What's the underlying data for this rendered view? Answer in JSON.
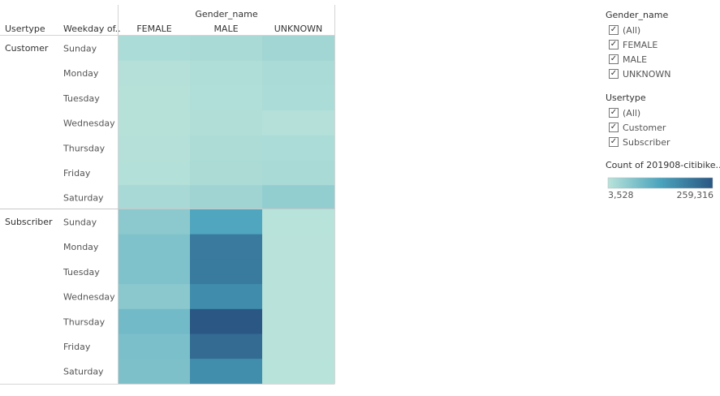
{
  "chart_data": {
    "type": "heatmap",
    "column_group_title": "Gender_name",
    "row_headers": [
      "Usertype",
      "Weekday of.."
    ],
    "columns": [
      "FEMALE",
      "MALE",
      "UNKNOWN"
    ],
    "groups": [
      {
        "label": "Customer",
        "rows": [
          {
            "weekday": "Sunday",
            "values": [
              18000,
              21000,
              30000
            ]
          },
          {
            "weekday": "Monday",
            "values": [
              9000,
              15000,
              20000
            ]
          },
          {
            "weekday": "Tuesday",
            "values": [
              8500,
              14000,
              18000
            ]
          },
          {
            "weekday": "Wednesday",
            "values": [
              8000,
              12500,
              9000
            ]
          },
          {
            "weekday": "Thursday",
            "values": [
              9500,
              17000,
              18000
            ]
          },
          {
            "weekday": "Friday",
            "values": [
              10500,
              19000,
              21000
            ]
          },
          {
            "weekday": "Saturday",
            "values": [
              23000,
              33000,
              48000
            ]
          }
        ]
      },
      {
        "label": "Subscriber",
        "rows": [
          {
            "weekday": "Sunday",
            "values": [
              55000,
              125000,
              4500
            ]
          },
          {
            "weekday": "Monday",
            "values": [
              70000,
              200000,
              3800
            ]
          },
          {
            "weekday": "Tuesday",
            "values": [
              70000,
              198000,
              3700
            ]
          },
          {
            "weekday": "Wednesday",
            "values": [
              58000,
              170000,
              3700
            ]
          },
          {
            "weekday": "Thursday",
            "values": [
              85000,
              259316,
              3528
            ]
          },
          {
            "weekday": "Friday",
            "values": [
              76000,
              225000,
              3700
            ]
          },
          {
            "weekday": "Saturday",
            "values": [
              73000,
              168000,
              4200
            ]
          }
        ]
      }
    ],
    "color_scale": {
      "title": "Count of 201908-citibike...",
      "min": 3528,
      "max": 259316,
      "min_label": "3,528",
      "max_label": "259,316",
      "color_low": "#b9e3da",
      "color_high": "#2a5783"
    }
  },
  "filters": [
    {
      "title": "Gender_name",
      "items": [
        {
          "label": "(All)",
          "checked": true
        },
        {
          "label": "FEMALE",
          "checked": true
        },
        {
          "label": "MALE",
          "checked": true
        },
        {
          "label": "UNKNOWN",
          "checked": true
        }
      ]
    },
    {
      "title": "Usertype",
      "items": [
        {
          "label": "(All)",
          "checked": true
        },
        {
          "label": "Customer",
          "checked": true
        },
        {
          "label": "Subscriber",
          "checked": true
        }
      ]
    }
  ],
  "icons": {
    "checkbox": "check-icon"
  }
}
